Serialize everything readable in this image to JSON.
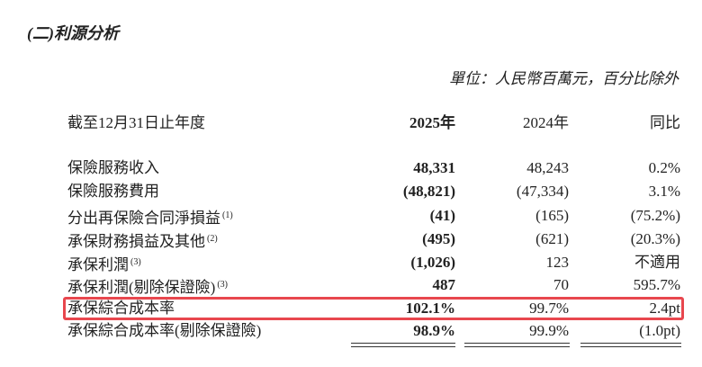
{
  "header": {
    "title": "(二)利源分析",
    "unit": "單位：人民幣百萬元，百分比除外"
  },
  "table": {
    "columns": [
      "截至12月31日止年度",
      "2025年",
      "2024年",
      "同比"
    ],
    "rows": [
      {
        "label": "保險服務收入",
        "cells": [
          "48,331",
          "48,243",
          "0.2%"
        ]
      },
      {
        "label": "保險服務費用",
        "cells": [
          "(48,821)",
          "(47,334)",
          "3.1%"
        ]
      },
      {
        "label": "分出再保險合同淨損益",
        "note": "(1)",
        "cells": [
          "(41)",
          "(165)",
          "(75.2%)"
        ]
      },
      {
        "label": "承保財務損益及其他",
        "note": "(2)",
        "cells": [
          "(495)",
          "(621)",
          "(20.3%)"
        ]
      },
      {
        "label": "承保利潤",
        "note": "(3)",
        "cells": [
          "(1,026)",
          "123",
          "不適用"
        ]
      },
      {
        "label": "承保利潤(剔除保證險)",
        "note": "(3)",
        "cells": [
          "487",
          "70",
          "595.7%"
        ]
      },
      {
        "label": "承保綜合成本率",
        "cells": [
          "102.1%",
          "99.7%",
          "2.4pt"
        ]
      },
      {
        "label": "承保綜合成本率(剔除保證險)",
        "cells": [
          "98.9%",
          "99.9%",
          "(1.0pt)"
        ]
      }
    ]
  }
}
